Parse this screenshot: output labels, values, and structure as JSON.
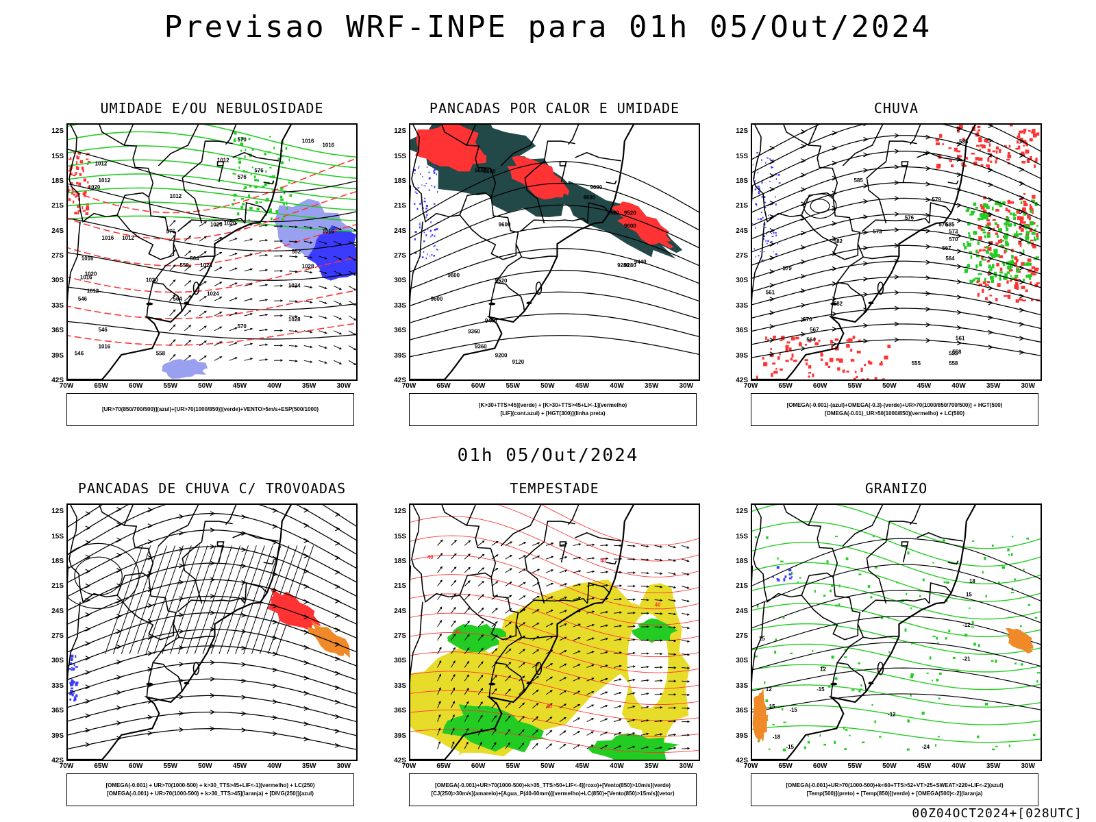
{
  "title": "Previsao WRF-INPE  para 01h 05/Out/2024",
  "mid_title": "01h 05/Out/2024",
  "run_label": "00Z04OCT2024+[028UTC]",
  "axes": {
    "lat_labels": [
      "12S",
      "15S",
      "18S",
      "21S",
      "24S",
      "27S",
      "30S",
      "33S",
      "36S",
      "39S",
      "42S"
    ],
    "lon_labels": [
      "70W",
      "65W",
      "60W",
      "55W",
      "50W",
      "45W",
      "40W",
      "35W",
      "30W"
    ],
    "lat_range": [
      -42,
      -11
    ],
    "lon_range": [
      -70,
      -28
    ]
  },
  "colors": {
    "blue": "#3b3bff",
    "green": "#22cc22",
    "red": "#ff3333",
    "dark_teal": "#234848",
    "yellow": "#e8dc2a",
    "orange": "#f08a28",
    "light_blue": "#9aa0f0"
  },
  "chart_data": [
    {
      "type": "heatmap",
      "title": "UMIDADE E/OU NEBULOSIDADE",
      "legend": [
        "[UR>70(850/700/500)](azul)+[UR>70(1000/850)](verde)+VENTO>5m/s+ESP(500/1000)"
      ],
      "contour_labels": [
        "1016",
        "1016",
        "1012",
        "1012",
        "1012",
        "1012",
        "1020",
        "1020",
        "1012",
        "1016",
        "1016",
        "1020",
        "1024",
        "1020",
        "1016",
        "1012",
        "1024",
        "1028",
        "1024",
        "1020",
        "1028",
        "1016",
        "1016",
        "570",
        "576",
        "576",
        "576",
        "564",
        "558",
        "552",
        "546",
        "546",
        "570",
        "546",
        "558",
        "564"
      ]
    },
    {
      "type": "heatmap",
      "title": "PANCADAS POR CALOR E UMIDADE",
      "legend": [
        "[K>30+TTS>45](verde) + [K>30+TTS>45+LI<-1](vermelho)",
        "[LIF](cont.azul) + [HGT(300)](linha preta)"
      ],
      "contour_labels": [
        "9680",
        "9680",
        "9600",
        "9600",
        "9600",
        "9600",
        "9600",
        "9520",
        "9440",
        "9520",
        "9360",
        "9440",
        "9600",
        "9520",
        "9280",
        "9360",
        "9200",
        "9120",
        "9280"
      ]
    },
    {
      "type": "heatmap",
      "title": "CHUVA",
      "legend": [
        "[OMEGA(-0.001)-(azul)+OMEGA(-0.3)-(verde)+UR>70(1000/850/700/500)] + HGT(500)",
        "[OMEGA(-0.01)_UR>50(1000/850)(vermelho) + LC(500)"
      ],
      "contour_labels": [
        "585",
        "585",
        "582",
        "579",
        "576",
        "573",
        "570",
        "567",
        "564",
        "561",
        "558",
        "555",
        "582",
        "585",
        "579",
        "576",
        "573",
        "570",
        "567",
        "564",
        "561",
        "558",
        "555"
      ]
    },
    {
      "type": "heatmap",
      "title": "PANCADAS DE CHUVA C/ TROVOADAS",
      "legend": [
        "[OMEGA(-0.001) + UR>70(1000-500) + k>30_TTS>45+LIF<-1](vermelho) + LC(250)",
        "[OMEGA(-0.001) + UR>70(1000-500) + k>30_TTS>45](laranja) + [DIVG(250)](azul)"
      ],
      "contour_labels": []
    },
    {
      "type": "heatmap",
      "title": "TEMPESTADE",
      "legend": [
        "[OMEGA(-0.001)+UR>70(1000-500)+k>35_TTS>50+LIF<-4](roxo)+[Vento(850)>10m/s](verde)",
        "[CJ(250)>30m/s](amarelo)+[Agua_P(40-60mm)](vermelho)+LC(850)+[Vento(850)>15m/s](vetor)"
      ],
      "contour_labels": [
        "40",
        "40",
        "40",
        "40",
        "40"
      ]
    },
    {
      "type": "heatmap",
      "title": "GRANIZO",
      "legend": [
        "[OMEGA(-0.001)+UR>70(1000-500)+k<60+TTS>52+VT>25+SWEAT>220+LIF<-2](azul)",
        "[Temp(500)](preto) + [Temp(850)](verde) + [OMEGA(500)<-2](laranja)"
      ],
      "contour_labels": [
        "-12",
        "-15",
        "-12",
        "-15",
        "-18",
        "-15",
        "-21",
        "-24",
        "18",
        "15",
        "12",
        "15",
        "12",
        "15"
      ]
    }
  ]
}
